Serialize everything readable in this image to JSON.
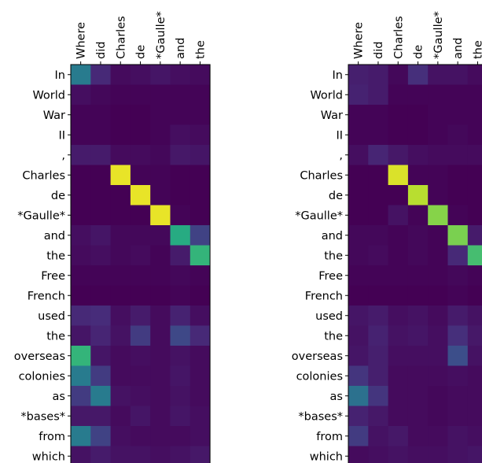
{
  "chart_data": [
    {
      "type": "heatmap",
      "title": "",
      "xlabel": "",
      "ylabel": "",
      "colormap": "viridis",
      "value_range": [
        0,
        1
      ],
      "x_ticks_position": "top",
      "x_labels": [
        "Where",
        "did",
        "Charles",
        "de",
        "*Gaulle*",
        "and",
        "the"
      ],
      "y_labels": [
        "In",
        "World",
        "War",
        "II",
        ",",
        "Charles",
        "de",
        "*Gaulle*",
        "and",
        "the",
        "Free",
        "French",
        "used",
        "the",
        "overseas",
        "colonies",
        "as",
        "*bases*",
        "from",
        "which"
      ],
      "values": [
        [
          0.42,
          0.12,
          0.03,
          0.04,
          0.06,
          0.04,
          0.03
        ],
        [
          0.04,
          0.02,
          0.01,
          0.01,
          0.01,
          0.01,
          0.01
        ],
        [
          0.01,
          0.01,
          0.0,
          0.0,
          0.01,
          0.01,
          0.01
        ],
        [
          0.01,
          0.01,
          0.0,
          0.0,
          0.01,
          0.04,
          0.03
        ],
        [
          0.08,
          0.08,
          0.03,
          0.03,
          0.02,
          0.07,
          0.06
        ],
        [
          0.0,
          0.0,
          0.97,
          0.01,
          0.01,
          0.0,
          0.0
        ],
        [
          0.0,
          0.0,
          0.0,
          0.97,
          0.01,
          0.0,
          0.0
        ],
        [
          0.0,
          0.0,
          0.0,
          0.0,
          0.97,
          0.01,
          0.0
        ],
        [
          0.04,
          0.06,
          0.02,
          0.02,
          0.02,
          0.62,
          0.2
        ],
        [
          0.03,
          0.04,
          0.02,
          0.03,
          0.01,
          0.08,
          0.66
        ],
        [
          0.01,
          0.01,
          0.01,
          0.01,
          0.01,
          0.02,
          0.01
        ],
        [
          0.0,
          0.0,
          0.0,
          0.0,
          0.0,
          0.01,
          0.0
        ],
        [
          0.12,
          0.13,
          0.04,
          0.08,
          0.03,
          0.1,
          0.04
        ],
        [
          0.06,
          0.11,
          0.05,
          0.18,
          0.03,
          0.22,
          0.12
        ],
        [
          0.66,
          0.06,
          0.03,
          0.04,
          0.03,
          0.05,
          0.03
        ],
        [
          0.42,
          0.18,
          0.03,
          0.03,
          0.03,
          0.06,
          0.03
        ],
        [
          0.18,
          0.42,
          0.05,
          0.04,
          0.03,
          0.05,
          0.03
        ],
        [
          0.07,
          0.07,
          0.03,
          0.06,
          0.03,
          0.06,
          0.04
        ],
        [
          0.42,
          0.2,
          0.04,
          0.03,
          0.03,
          0.03,
          0.04
        ],
        [
          0.05,
          0.08,
          0.05,
          0.05,
          0.04,
          0.05,
          0.07
        ]
      ]
    },
    {
      "type": "heatmap",
      "title": "",
      "xlabel": "",
      "ylabel": "",
      "colormap": "viridis",
      "value_range": [
        0,
        1
      ],
      "x_ticks_position": "top",
      "x_labels": [
        "Where",
        "did",
        "Charles",
        "de",
        "*Gaulle*",
        "and",
        "the"
      ],
      "y_labels": [
        "In",
        "World",
        "War",
        "II",
        ",",
        "Charles",
        "de",
        "*Gaulle*",
        "and",
        "the",
        "Free",
        "French",
        "used",
        "the",
        "overseas",
        "colonies",
        "as",
        "*bases*",
        "from",
        "which"
      ],
      "values": [
        [
          0.09,
          0.08,
          0.02,
          0.14,
          0.05,
          0.05,
          0.03
        ],
        [
          0.1,
          0.08,
          0.01,
          0.01,
          0.01,
          0.01,
          0.01
        ],
        [
          0.01,
          0.01,
          0.0,
          0.0,
          0.01,
          0.01,
          0.01
        ],
        [
          0.01,
          0.01,
          0.0,
          0.0,
          0.01,
          0.02,
          0.01
        ],
        [
          0.04,
          0.11,
          0.07,
          0.04,
          0.03,
          0.03,
          0.03
        ],
        [
          0.0,
          0.0,
          0.95,
          0.01,
          0.01,
          0.0,
          0.0
        ],
        [
          0.0,
          0.0,
          0.0,
          0.9,
          0.01,
          0.0,
          0.0
        ],
        [
          0.0,
          0.0,
          0.05,
          0.01,
          0.82,
          0.01,
          0.0
        ],
        [
          0.02,
          0.02,
          0.01,
          0.02,
          0.01,
          0.8,
          0.08
        ],
        [
          0.02,
          0.03,
          0.01,
          0.02,
          0.01,
          0.12,
          0.7
        ],
        [
          0.01,
          0.01,
          0.01,
          0.01,
          0.01,
          0.02,
          0.01
        ],
        [
          0.0,
          0.0,
          0.0,
          0.0,
          0.0,
          0.01,
          0.0
        ],
        [
          0.06,
          0.08,
          0.04,
          0.05,
          0.03,
          0.08,
          0.05
        ],
        [
          0.05,
          0.1,
          0.05,
          0.06,
          0.04,
          0.14,
          0.07
        ],
        [
          0.06,
          0.09,
          0.04,
          0.04,
          0.04,
          0.24,
          0.05
        ],
        [
          0.16,
          0.09,
          0.03,
          0.03,
          0.03,
          0.04,
          0.03
        ],
        [
          0.38,
          0.16,
          0.03,
          0.03,
          0.02,
          0.03,
          0.03
        ],
        [
          0.1,
          0.07,
          0.03,
          0.03,
          0.02,
          0.03,
          0.03
        ],
        [
          0.18,
          0.05,
          0.07,
          0.03,
          0.03,
          0.05,
          0.04
        ],
        [
          0.03,
          0.04,
          0.05,
          0.04,
          0.04,
          0.05,
          0.06
        ]
      ]
    }
  ]
}
